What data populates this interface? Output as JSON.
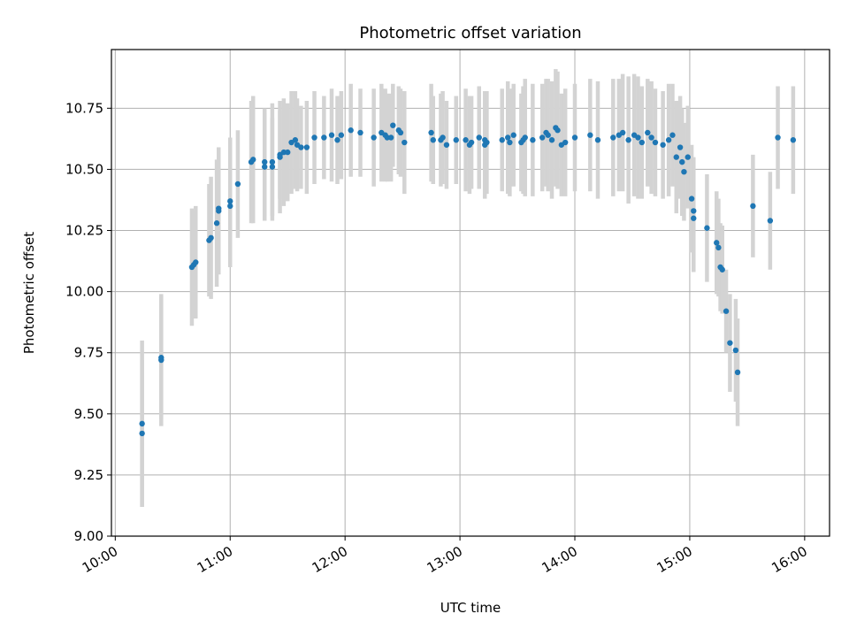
{
  "chart_data": {
    "type": "scatter",
    "title": "Photometric offset variation",
    "xlabel": "UTC time",
    "ylabel": "Photometric offset",
    "grid": true,
    "xlim": [
      "09:58",
      "16:13"
    ],
    "ylim": [
      9.0,
      10.99
    ],
    "xticks": [
      "10:00",
      "11:00",
      "12:00",
      "13:00",
      "14:00",
      "15:00",
      "16:00"
    ],
    "yticks": [
      "9.00",
      "9.25",
      "9.50",
      "9.75",
      "10.00",
      "10.25",
      "10.50",
      "10.75"
    ],
    "colors": {
      "points": "#1f77b4",
      "errorbars": "#d3d3d3",
      "grid": "#b0b0b0"
    },
    "series": [
      {
        "x": [
          "10:14",
          "10:14",
          "10:24",
          "10:24",
          "10:40",
          "10:41",
          "10:42",
          "10:49",
          "10:50",
          "10:53",
          "10:54",
          "10:54",
          "11:00",
          "11:00",
          "11:04",
          "11:11",
          "11:12",
          "11:18",
          "11:18",
          "11:22",
          "11:22",
          "11:26",
          "11:26",
          "11:28",
          "11:30",
          "11:32",
          "11:34",
          "11:35",
          "11:37",
          "11:40",
          "11:44",
          "11:49",
          "11:53",
          "11:56",
          "11:58",
          "12:03",
          "12:08",
          "12:15",
          "12:19",
          "12:21",
          "12:22",
          "12:24",
          "12:25",
          "12:28",
          "12:29",
          "12:31",
          "12:45",
          "12:46",
          "12:50",
          "12:51",
          "12:53",
          "12:58",
          "13:03",
          "13:05",
          "13:06",
          "13:10",
          "13:13",
          "13:13",
          "13:14",
          "13:22",
          "13:25",
          "13:26",
          "13:28",
          "13:32",
          "13:33",
          "13:34",
          "13:38",
          "13:43",
          "13:45",
          "13:46",
          "13:48",
          "13:50",
          "13:51",
          "13:53",
          "13:55",
          "14:00",
          "14:08",
          "14:12",
          "14:20",
          "14:23",
          "14:25",
          "14:28",
          "14:31",
          "14:33",
          "14:35",
          "14:38",
          "14:40",
          "14:42",
          "14:46",
          "14:49",
          "14:51",
          "14:53",
          "14:55",
          "14:56",
          "14:57",
          "14:59",
          "15:01",
          "15:02",
          "15:02",
          "15:09",
          "15:14",
          "15:15",
          "15:16",
          "15:17",
          "15:19",
          "15:21",
          "15:24",
          "15:25",
          "15:33",
          "15:42",
          "15:46",
          "15:54"
        ],
        "y": [
          9.46,
          9.42,
          9.72,
          9.73,
          10.1,
          10.11,
          10.12,
          10.21,
          10.22,
          10.28,
          10.33,
          10.34,
          10.35,
          10.37,
          10.44,
          10.53,
          10.54,
          10.51,
          10.53,
          10.51,
          10.53,
          10.55,
          10.56,
          10.57,
          10.57,
          10.61,
          10.62,
          10.6,
          10.59,
          10.59,
          10.63,
          10.63,
          10.64,
          10.62,
          10.64,
          10.66,
          10.65,
          10.63,
          10.65,
          10.64,
          10.63,
          10.63,
          10.68,
          10.66,
          10.65,
          10.61,
          10.65,
          10.62,
          10.62,
          10.63,
          10.6,
          10.62,
          10.62,
          10.6,
          10.61,
          10.63,
          10.62,
          10.6,
          10.61,
          10.62,
          10.63,
          10.61,
          10.64,
          10.61,
          10.62,
          10.63,
          10.62,
          10.63,
          10.65,
          10.64,
          10.62,
          10.67,
          10.66,
          10.6,
          10.61,
          10.63,
          10.64,
          10.62,
          10.63,
          10.64,
          10.65,
          10.62,
          10.64,
          10.63,
          10.61,
          10.65,
          10.63,
          10.61,
          10.6,
          10.62,
          10.64,
          10.55,
          10.59,
          10.53,
          10.49,
          10.55,
          10.38,
          10.3,
          10.33,
          10.26,
          10.2,
          10.18,
          10.1,
          10.09,
          9.92,
          9.79,
          9.76,
          9.67,
          10.35,
          10.29,
          10.63,
          10.62
        ],
        "err": [
          0.34,
          0.3,
          0.27,
          0.25,
          0.24,
          0.22,
          0.23,
          0.23,
          0.25,
          0.26,
          0.26,
          0.24,
          0.25,
          0.26,
          0.22,
          0.25,
          0.26,
          0.22,
          0.22,
          0.2,
          0.24,
          0.23,
          0.18,
          0.22,
          0.2,
          0.21,
          0.2,
          0.19,
          0.17,
          0.19,
          0.19,
          0.17,
          0.19,
          0.18,
          0.18,
          0.19,
          0.18,
          0.2,
          0.2,
          0.19,
          0.18,
          0.18,
          0.17,
          0.18,
          0.18,
          0.21,
          0.2,
          0.18,
          0.19,
          0.19,
          0.18,
          0.18,
          0.21,
          0.2,
          0.19,
          0.21,
          0.2,
          0.22,
          0.21,
          0.21,
          0.23,
          0.22,
          0.21,
          0.2,
          0.22,
          0.24,
          0.23,
          0.22,
          0.22,
          0.23,
          0.24,
          0.24,
          0.24,
          0.21,
          0.22,
          0.22,
          0.23,
          0.24,
          0.24,
          0.23,
          0.24,
          0.26,
          0.25,
          0.25,
          0.23,
          0.22,
          0.23,
          0.22,
          0.22,
          0.23,
          0.21,
          0.23,
          0.21,
          0.22,
          0.2,
          0.21,
          0.22,
          0.22,
          0.22,
          0.22,
          0.21,
          0.2,
          0.18,
          0.18,
          0.17,
          0.2,
          0.21,
          0.22,
          0.21,
          0.2,
          0.21,
          0.22
        ]
      }
    ]
  }
}
